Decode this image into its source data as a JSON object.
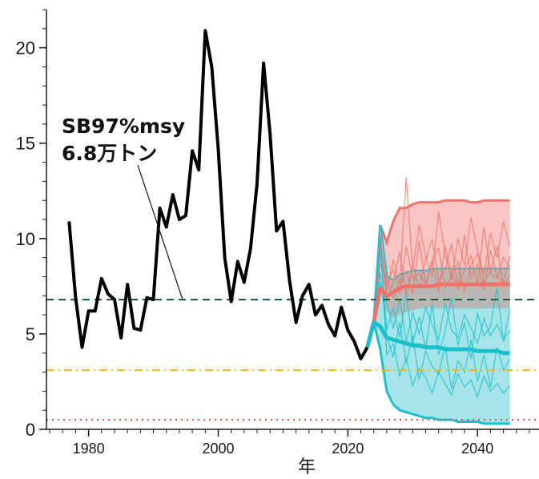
{
  "chart_data": {
    "type": "line",
    "xlabel": "年",
    "ylabel": "",
    "xlim": [
      1973.5,
      2048.5
    ],
    "ylim": [
      0,
      22
    ],
    "x_ticks": [
      1980,
      2000,
      2020,
      2040
    ],
    "y_ticks": [
      0,
      5,
      10,
      15,
      20
    ],
    "grid": false,
    "annotation": {
      "lines": [
        "SB97%msy",
        "6.8万トン"
      ],
      "points_to": [
        1994.5,
        6.8
      ]
    },
    "reference_lines": [
      {
        "y": 6.8,
        "style": "dashed",
        "color": "#1e5b45"
      },
      {
        "y": 3.1,
        "style": "dashdot",
        "color": "#f2b81c"
      },
      {
        "y": 0.5,
        "style": "dotted",
        "color": "#d9534f"
      }
    ],
    "colors": {
      "historical": "#000000",
      "scenario_high": "#f0736b",
      "scenario_low": "#1cc0cc",
      "band_high": "#f7b3b0",
      "band_low": "#8fdde2",
      "band_overlap": "#bfb1ad"
    },
    "series": [
      {
        "x": [
          1977,
          1978,
          1979,
          1980,
          1981,
          1982,
          1983,
          1984,
          1985,
          1986,
          1987,
          1988,
          1989,
          1990,
          1991,
          1992,
          1993,
          1994,
          1995,
          1996,
          1997,
          1998,
          1999,
          2000,
          2001,
          2002,
          2003,
          2004,
          2005,
          2006,
          2007,
          2008,
          2009,
          2010,
          2011,
          2012,
          2013,
          2014,
          2015,
          2016,
          2017,
          2018,
          2019,
          2020,
          2021,
          2022,
          2023
        ],
        "values": [
          10.9,
          6.9,
          4.3,
          6.2,
          6.2,
          7.9,
          7.1,
          6.8,
          4.8,
          7.6,
          5.3,
          5.2,
          6.9,
          6.8,
          11.6,
          10.6,
          12.3,
          11.0,
          11.2,
          14.6,
          13.6,
          20.9,
          19.0,
          14.7,
          9.0,
          6.7,
          8.8,
          7.7,
          9.5,
          12.9,
          19.2,
          15.5,
          10.4,
          10.9,
          7.8,
          5.6,
          7.0,
          7.6,
          6.0,
          6.5,
          5.5,
          4.9,
          6.4,
          5.2,
          4.6,
          3.7,
          4.3
        ]
      }
    ],
    "projection_bands": [
      {
        "x": [
          2023,
          2024,
          2025,
          2026,
          2027,
          2028,
          2029,
          2030,
          2031,
          2032,
          2033,
          2034,
          2035,
          2036,
          2037,
          2038,
          2039,
          2040,
          2041,
          2042,
          2043,
          2044,
          2045
        ],
        "upper": [
          4.3,
          5.6,
          10.7,
          9.8,
          10.9,
          11.6,
          11.6,
          11.8,
          11.9,
          11.9,
          11.9,
          11.9,
          12.0,
          12.0,
          12.0,
          12.0,
          11.9,
          11.9,
          12.0,
          12.0,
          12.0,
          12.0,
          12.0
        ],
        "lower": [
          4.3,
          5.6,
          10.2,
          6.3,
          5.9,
          6.1,
          6.2,
          6.3,
          6.4,
          6.4,
          6.4,
          6.4,
          6.4,
          6.4,
          6.4,
          6.4,
          6.4,
          6.4,
          6.4,
          6.4,
          6.4,
          6.4,
          6.4
        ]
      },
      {
        "x": [
          2023,
          2024,
          2025,
          2026,
          2027,
          2028,
          2029,
          2030,
          2031,
          2032,
          2033,
          2034,
          2035,
          2036,
          2037,
          2038,
          2039,
          2040,
          2041,
          2042,
          2043,
          2044,
          2045
        ],
        "upper": [
          4.3,
          5.6,
          10.7,
          8.0,
          7.8,
          8.1,
          8.2,
          8.3,
          8.3,
          8.3,
          8.4,
          8.4,
          8.4,
          8.4,
          8.4,
          8.4,
          8.4,
          8.4,
          8.4,
          8.4,
          8.4,
          8.4,
          8.4
        ],
        "lower": [
          4.3,
          5.6,
          4.2,
          2.0,
          1.3,
          1.0,
          0.9,
          0.8,
          0.7,
          0.6,
          0.6,
          0.5,
          0.5,
          0.5,
          0.4,
          0.4,
          0.4,
          0.4,
          0.3,
          0.3,
          0.3,
          0.3,
          0.3
        ]
      }
    ],
    "projection_means": [
      {
        "x": [
          2023,
          2024,
          2025,
          2026,
          2027,
          2028,
          2029,
          2030,
          2031,
          2032,
          2033,
          2034,
          2035,
          2036,
          2037,
          2038,
          2039,
          2040,
          2041,
          2042,
          2043,
          2044,
          2045
        ],
        "values": [
          4.3,
          5.6,
          7.4,
          7.0,
          7.2,
          7.4,
          7.5,
          7.5,
          7.5,
          7.5,
          7.5,
          7.6,
          7.6,
          7.6,
          7.6,
          7.6,
          7.6,
          7.6,
          7.6,
          7.6,
          7.6,
          7.6,
          7.6
        ]
      },
      {
        "x": [
          2023,
          2024,
          2025,
          2026,
          2027,
          2028,
          2029,
          2030,
          2031,
          2032,
          2033,
          2034,
          2035,
          2036,
          2037,
          2038,
          2039,
          2040,
          2041,
          2042,
          2043,
          2044,
          2045
        ],
        "values": [
          4.3,
          5.6,
          5.4,
          4.8,
          4.7,
          4.6,
          4.5,
          4.4,
          4.4,
          4.3,
          4.3,
          4.3,
          4.2,
          4.2,
          4.2,
          4.2,
          4.2,
          4.1,
          4.1,
          4.1,
          4.1,
          4.0,
          4.0
        ]
      }
    ],
    "projection_traces": [
      {
        "x": [
          2024,
          2025,
          2026,
          2027,
          2028,
          2029,
          2030,
          2031,
          2032,
          2033,
          2034,
          2035,
          2036,
          2037,
          2038,
          2039,
          2040,
          2041,
          2042,
          2043,
          2044,
          2045
        ],
        "values": [
          5.6,
          9.8,
          7.2,
          8.9,
          7.6,
          13.2,
          8.4,
          10.7,
          9.1,
          8.0,
          11.4,
          9.2,
          7.8,
          10.0,
          8.6,
          11.1,
          9.4,
          8.1,
          10.3,
          9.0,
          10.9,
          9.6
        ]
      },
      {
        "x": [
          2024,
          2025,
          2026,
          2027,
          2028,
          2029,
          2030,
          2031,
          2032,
          2033,
          2034,
          2035,
          2036,
          2037,
          2038,
          2039,
          2040,
          2041,
          2042,
          2043,
          2044,
          2045
        ],
        "values": [
          5.6,
          8.6,
          7.9,
          6.9,
          7.4,
          8.3,
          7.1,
          9.9,
          7.6,
          8.8,
          7.2,
          9.6,
          8.1,
          7.5,
          10.2,
          7.9,
          8.7,
          7.3,
          9.4,
          8.0,
          7.7,
          9.1
        ]
      },
      {
        "x": [
          2024,
          2025,
          2026,
          2027,
          2028,
          2029,
          2030,
          2031,
          2032,
          2033,
          2034,
          2035,
          2036,
          2037,
          2038,
          2039,
          2040,
          2041,
          2042,
          2043,
          2044,
          2045
        ],
        "values": [
          5.6,
          10.2,
          6.8,
          7.7,
          9.3,
          7.0,
          8.6,
          7.4,
          8.9,
          10.0,
          7.8,
          8.3,
          9.7,
          7.3,
          8.4,
          9.1,
          7.6,
          10.6,
          8.2,
          7.9,
          9.0,
          8.5
        ]
      },
      {
        "x": [
          2024,
          2025,
          2026,
          2027,
          2028,
          2029,
          2030,
          2031,
          2032,
          2033,
          2034,
          2035,
          2036,
          2037,
          2038,
          2039,
          2040,
          2041,
          2042,
          2043,
          2044,
          2045
        ],
        "values": [
          5.6,
          9.1,
          7.6,
          8.4,
          7.1,
          9.6,
          7.9,
          8.2,
          7.5,
          8.9,
          9.5,
          7.4,
          8.0,
          8.8,
          7.2,
          8.6,
          9.2,
          7.7,
          8.3,
          9.6,
          7.5,
          8.1
        ]
      },
      {
        "x": [
          2024,
          2025,
          2026,
          2027,
          2028,
          2029,
          2030,
          2031,
          2032,
          2033,
          2034,
          2035,
          2036,
          2037,
          2038,
          2039,
          2040,
          2041,
          2042,
          2043,
          2044,
          2045
        ],
        "values": [
          5.6,
          9.4,
          5.2,
          6.4,
          4.8,
          7.1,
          4.5,
          5.9,
          4.2,
          6.6,
          3.9,
          5.1,
          6.9,
          4.4,
          5.6,
          3.7,
          6.1,
          4.9,
          5.4,
          7.4,
          4.6,
          6.3
        ]
      },
      {
        "x": [
          2024,
          2025,
          2026,
          2027,
          2028,
          2029,
          2030,
          2031,
          2032,
          2033,
          2034,
          2035,
          2036,
          2037,
          2038,
          2039,
          2040,
          2041,
          2042,
          2043,
          2044,
          2045
        ],
        "values": [
          5.6,
          8.2,
          4.9,
          3.8,
          5.6,
          3.5,
          4.9,
          2.6,
          4.1,
          3.3,
          2.9,
          4.4,
          2.1,
          3.6,
          3.0,
          4.7,
          2.5,
          3.9,
          2.2,
          4.3,
          3.1,
          3.7
        ]
      },
      {
        "x": [
          2024,
          2025,
          2026,
          2027,
          2028,
          2029,
          2030,
          2031,
          2032,
          2033,
          2034,
          2035,
          2036,
          2037,
          2038,
          2039,
          2040,
          2041,
          2042,
          2043,
          2044,
          2045
        ],
        "values": [
          5.6,
          7.7,
          6.6,
          5.3,
          6.8,
          4.6,
          6.1,
          5.0,
          6.4,
          5.5,
          4.7,
          6.6,
          5.2,
          4.8,
          6.0,
          5.3,
          4.5,
          5.8,
          4.9,
          5.5,
          4.7,
          5.2
        ]
      },
      {
        "x": [
          2024,
          2025,
          2026,
          2027,
          2028,
          2029,
          2030,
          2031,
          2032,
          2033,
          2034,
          2035,
          2036,
          2037,
          2038,
          2039,
          2040,
          2041,
          2042,
          2043,
          2044,
          2045
        ],
        "values": [
          5.6,
          10.1,
          3.9,
          4.5,
          2.8,
          3.7,
          2.3,
          3.2,
          2.7,
          1.9,
          3.0,
          2.4,
          1.8,
          2.9,
          2.2,
          2.6,
          1.7,
          2.8,
          2.0,
          2.4,
          1.9,
          2.3
        ]
      }
    ]
  }
}
